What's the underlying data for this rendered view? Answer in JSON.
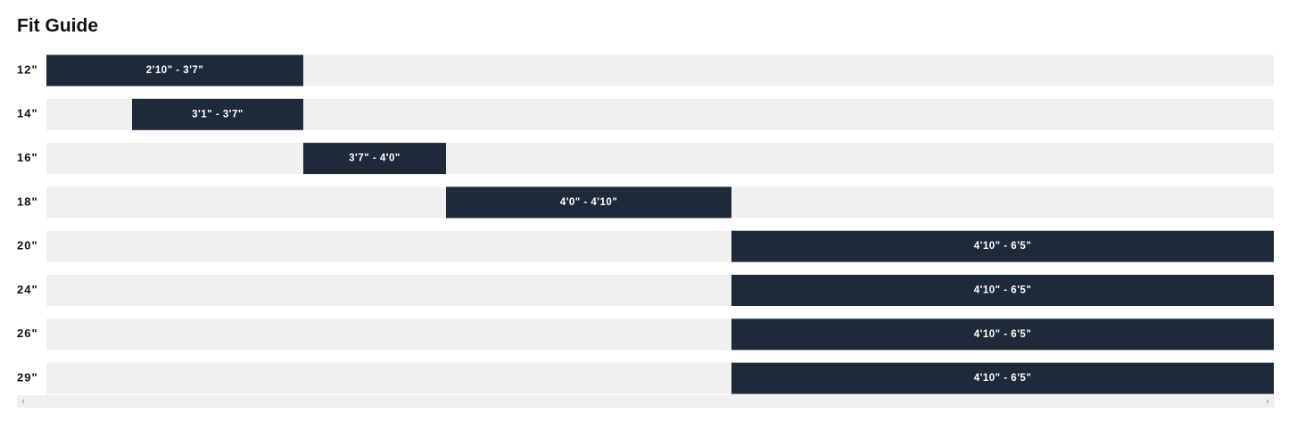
{
  "chart_data": {
    "type": "range",
    "title": "Fit Guide",
    "categories": [
      "12\"",
      "14\"",
      "16\"",
      "18\"",
      "20\"",
      "24\"",
      "26\"",
      "29\""
    ],
    "starts": [
      34,
      37,
      43,
      48,
      58,
      58,
      58,
      58
    ],
    "ends": [
      43,
      43,
      48,
      58,
      77,
      77,
      77,
      77
    ],
    "value_labels": [
      "2'10\" - 3'7\"",
      "3'1\" - 3'7\"",
      "3'7\" - 4'0\"",
      "4'0\" - 4'10\"",
      "4'10\" - 6'5\"",
      "4'10\" - 6'5\"",
      "4'10\" - 6'5\"",
      "4'10\" - 6'5\""
    ],
    "xlim": [
      34,
      77
    ],
    "color": "#1e2a3a",
    "track_color": "#f0f0f0"
  }
}
